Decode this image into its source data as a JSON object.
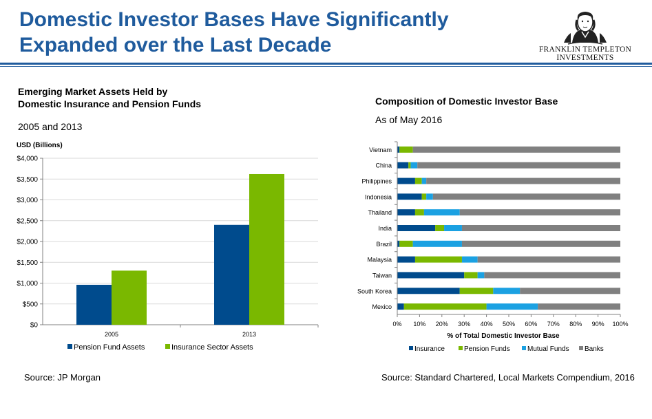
{
  "slide": {
    "title": "Domestic Investor Bases Have Significantly Expanded over the Last Decade"
  },
  "logo": {
    "line1": "FRANKLIN TEMPLETON",
    "line2": "INVESTMENTS"
  },
  "left_panel": {
    "title_line1": "Emerging Market Assets Held by",
    "title_line2": "Domestic Insurance and Pension Funds",
    "subtitle": "2005 and 2013",
    "unit_label": "USD (Billions)",
    "source": "Source: JP Morgan"
  },
  "right_panel": {
    "title": "Composition of Domestic Investor Base",
    "subtitle": "As of May 2016",
    "source": "Source: Standard Chartered, Local Markets Compendium, 2016"
  },
  "chart_data": [
    {
      "type": "bar",
      "title": "Emerging Market Assets Held by Domestic Insurance and Pension Funds",
      "subtitle": "2005 and 2013",
      "ylabel": "USD (Billions)",
      "categories": [
        "2005",
        "2013"
      ],
      "series": [
        {
          "name": "Pension Fund Assets",
          "color": "#004b8d",
          "values": [
            960,
            2400
          ]
        },
        {
          "name": "Insurance Sector Assets",
          "color": "#7ab800",
          "values": [
            1300,
            3620
          ]
        }
      ],
      "ylim": [
        0,
        4000
      ],
      "yticks": [
        "$0",
        "$500",
        "$1,000",
        "$1,500",
        "$2,000",
        "$2,500",
        "$3,000",
        "$3,500",
        "$4,000"
      ],
      "ytick_values": [
        0,
        500,
        1000,
        1500,
        2000,
        2500,
        3000,
        3500,
        4000
      ],
      "grid": true,
      "legend": "bottom"
    },
    {
      "type": "bar",
      "orientation": "horizontal",
      "stacked": true,
      "title": "Composition of Domestic Investor Base",
      "subtitle": "As of May 2016",
      "xlabel": "% of Total Domestic Investor Base",
      "categories": [
        "Vietnam",
        "China",
        "Philippines",
        "Indonesia",
        "Thailand",
        "India",
        "Brazil",
        "Malaysia",
        "Taiwan",
        "South Korea",
        "Mexico"
      ],
      "series": [
        {
          "name": "Insurance",
          "color": "#004b8d",
          "values": [
            1,
            5,
            8,
            11,
            8,
            17,
            1,
            8,
            30,
            28,
            3
          ]
        },
        {
          "name": "Pension Funds",
          "color": "#7ab800",
          "values": [
            6,
            1,
            3,
            2,
            4,
            4,
            6,
            21,
            6,
            15,
            37
          ]
        },
        {
          "name": "Mutual Funds",
          "color": "#1ba1e2",
          "values": [
            0,
            3,
            2,
            3,
            16,
            8,
            22,
            7,
            3,
            12,
            23
          ]
        },
        {
          "name": "Banks",
          "color": "#808080",
          "values": [
            93,
            91,
            87,
            84,
            72,
            71,
            71,
            64,
            61,
            45,
            37
          ]
        }
      ],
      "xlim": [
        0,
        100
      ],
      "xticks": [
        "0%",
        "10%",
        "20%",
        "30%",
        "40%",
        "50%",
        "60%",
        "70%",
        "80%",
        "90%",
        "100%"
      ],
      "xtick_values": [
        0,
        10,
        20,
        30,
        40,
        50,
        60,
        70,
        80,
        90,
        100
      ],
      "grid": false,
      "legend": "bottom"
    }
  ]
}
